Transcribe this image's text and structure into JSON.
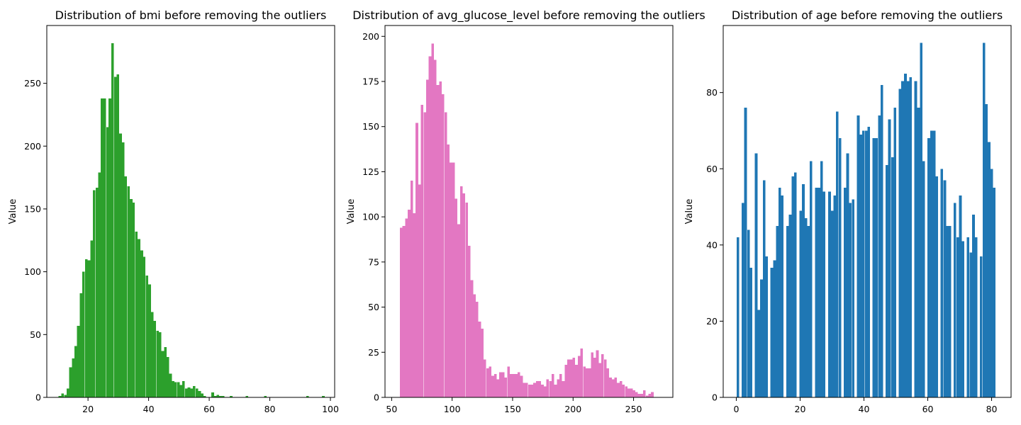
{
  "chart_data": [
    {
      "type": "bar",
      "title": "Distribution of bmi before removing the outliers",
      "xlabel": "",
      "ylabel": "Value",
      "color": "#2ca02c",
      "xlim": [
        6.4,
        101.4
      ],
      "ylim": [
        0,
        296
      ],
      "xticks": [
        20,
        40,
        60,
        80,
        100
      ],
      "yticks": [
        0,
        50,
        100,
        150,
        200,
        250
      ],
      "bin_width": 0.867,
      "x": [
        10.3,
        11.2,
        12.1,
        12.9,
        13.8,
        14.7,
        15.5,
        16.4,
        17.3,
        18.1,
        19.0,
        19.9,
        20.8,
        21.6,
        22.5,
        23.4,
        24.2,
        25.1,
        26.0,
        26.8,
        27.7,
        28.6,
        29.4,
        30.3,
        31.2,
        32.0,
        32.9,
        33.8,
        34.6,
        35.5,
        36.4,
        37.3,
        38.1,
        39.0,
        39.9,
        40.7,
        41.6,
        42.5,
        43.3,
        44.2,
        45.1,
        45.9,
        46.8,
        47.7,
        48.5,
        49.4,
        50.3,
        51.1,
        52.0,
        52.9,
        53.8,
        54.6,
        55.5,
        56.4,
        57.2,
        58.1,
        59.0,
        59.8,
        60.7,
        61.6,
        62.4,
        63.3,
        64.2,
        65.0,
        65.9,
        66.8,
        67.6,
        68.5,
        69.4,
        70.3,
        71.1,
        72.0,
        72.9,
        73.7,
        74.6,
        75.5,
        76.3,
        77.2,
        78.1,
        78.9,
        79.8,
        80.7,
        81.5,
        82.4,
        83.3,
        84.1,
        85.0,
        85.9,
        86.8,
        87.6,
        88.5,
        89.4,
        90.2,
        91.1,
        92.0,
        92.8,
        93.7,
        94.6,
        95.4,
        96.3,
        97.2
      ],
      "values": [
        1,
        3,
        2,
        7,
        24,
        31,
        41,
        57,
        83,
        100,
        110,
        109,
        125,
        165,
        167,
        179,
        238,
        238,
        215,
        238,
        282,
        255,
        257,
        210,
        203,
        176,
        168,
        158,
        155,
        132,
        126,
        117,
        112,
        97,
        90,
        68,
        61,
        53,
        52,
        37,
        40,
        32,
        19,
        13,
        12,
        12,
        10,
        13,
        7,
        8,
        7,
        9,
        7,
        5,
        3,
        1,
        0,
        0,
        4,
        1,
        2,
        1,
        1,
        0,
        0,
        1,
        0,
        0,
        0,
        0,
        0,
        1,
        0,
        0,
        0,
        0,
        0,
        0,
        1,
        0,
        0,
        0,
        0,
        0,
        0,
        0,
        0,
        0,
        0,
        0,
        0,
        0,
        0,
        0,
        1,
        0,
        0,
        0,
        0,
        0,
        1
      ]
    },
    {
      "type": "bar",
      "title": "Distribution of avg_glucose_level before removing the outliers",
      "xlabel": "",
      "ylabel": "Value",
      "color": "#e377c2",
      "xlim": [
        44.5,
        282.5
      ],
      "ylim": [
        0,
        206
      ],
      "xticks": [
        50,
        100,
        150,
        200,
        250
      ],
      "yticks": [
        0,
        25,
        50,
        75,
        100,
        125,
        150,
        175,
        200
      ],
      "bin_width": 2.16,
      "x": [
        56.8,
        59.0,
        61.1,
        63.3,
        65.5,
        67.6,
        69.8,
        72.0,
        74.1,
        76.3,
        78.4,
        80.6,
        82.8,
        84.9,
        87.1,
        89.3,
        91.4,
        93.6,
        95.7,
        97.9,
        100.1,
        102.2,
        104.4,
        106.6,
        108.7,
        110.9,
        113.0,
        115.2,
        117.4,
        119.5,
        121.7,
        123.9,
        126.0,
        128.2,
        130.3,
        132.5,
        134.7,
        136.8,
        139.0,
        141.2,
        143.3,
        145.5,
        147.6,
        149.8,
        152.0,
        154.1,
        156.3,
        158.5,
        160.6,
        162.8,
        164.9,
        167.1,
        169.3,
        171.4,
        173.6,
        175.8,
        177.9,
        180.1,
        182.2,
        184.4,
        186.6,
        188.7,
        190.9,
        193.1,
        195.2,
        197.4,
        199.5,
        201.7,
        203.9,
        206.0,
        208.2,
        210.4,
        212.5,
        214.7,
        216.8,
        219.0,
        221.2,
        223.3,
        225.5,
        227.7,
        229.8,
        232.0,
        234.1,
        236.3,
        238.5,
        240.6,
        242.8,
        245.0,
        247.1,
        249.3,
        251.4,
        253.6,
        255.8,
        257.9,
        260.1,
        262.3,
        264.4,
        266.6,
        268.7,
        270.9
      ],
      "values": [
        94,
        95,
        99,
        104,
        120,
        102,
        152,
        118,
        162,
        158,
        176,
        189,
        196,
        187,
        173,
        175,
        168,
        158,
        140,
        130,
        130,
        110,
        96,
        117,
        113,
        108,
        84,
        65,
        57,
        53,
        42,
        38,
        21,
        16,
        17,
        12,
        13,
        10,
        14,
        14,
        11,
        17,
        13,
        13,
        13,
        14,
        12,
        8,
        8,
        7,
        7,
        8,
        9,
        9,
        7,
        6,
        10,
        9,
        13,
        7,
        10,
        13,
        9,
        18,
        21,
        21,
        22,
        18,
        23,
        27,
        17,
        16,
        16,
        25,
        22,
        26,
        19,
        24,
        21,
        16,
        11,
        10,
        11,
        8,
        9,
        7,
        6,
        5,
        5,
        4,
        3,
        2,
        2,
        4,
        1,
        2,
        3,
        0,
        0,
        0
      ]
    },
    {
      "type": "bar",
      "title": "Distribution of age before removing the outliers",
      "xlabel": "",
      "ylabel": "Value",
      "color": "#1f77b4",
      "xlim": [
        -4.1,
        86.1
      ],
      "ylim": [
        0,
        97.6
      ],
      "xticks": [
        0,
        20,
        40,
        60,
        80
      ],
      "yticks": [
        0,
        20,
        40,
        60,
        80
      ],
      "bin_width": 0.82,
      "x": [
        0.1,
        0.9,
        1.7,
        2.5,
        3.4,
        4.2,
        5.0,
        5.8,
        6.6,
        7.5,
        8.3,
        9.1,
        9.9,
        10.7,
        11.6,
        12.4,
        13.2,
        14.0,
        14.8,
        15.7,
        16.5,
        17.3,
        18.1,
        18.9,
        19.8,
        20.6,
        21.4,
        22.2,
        23.0,
        23.9,
        24.7,
        25.5,
        26.3,
        27.1,
        28.0,
        28.8,
        29.6,
        30.4,
        31.2,
        32.1,
        32.9,
        33.7,
        34.5,
        35.3,
        36.2,
        37.0,
        37.8,
        38.6,
        39.4,
        40.3,
        41.1,
        41.9,
        42.7,
        43.5,
        44.4,
        45.2,
        46.0,
        46.8,
        47.6,
        48.5,
        49.3,
        50.1,
        50.9,
        51.7,
        52.6,
        53.4,
        54.2,
        55.0,
        55.8,
        56.7,
        57.5,
        58.3,
        59.1,
        59.9,
        60.8,
        61.6,
        62.4,
        63.2,
        64.0,
        64.9,
        65.7,
        66.5,
        67.3,
        68.1,
        69.0,
        69.8,
        70.6,
        71.4,
        72.2,
        73.1,
        73.9,
        74.7,
        75.5,
        76.3,
        77.2,
        78.0,
        78.8,
        79.6,
        80.4,
        81.3
      ],
      "values": [
        42,
        0,
        51,
        76,
        44,
        34,
        0,
        64,
        23,
        31,
        57,
        37,
        0,
        34,
        36,
        45,
        55,
        53,
        0,
        45,
        48,
        58,
        59,
        0,
        49,
        56,
        47,
        45,
        62,
        0,
        55,
        55,
        62,
        54,
        0,
        54,
        49,
        53,
        75,
        68,
        0,
        55,
        64,
        51,
        52,
        0,
        74,
        69,
        70,
        70,
        71,
        0,
        68,
        68,
        74,
        82,
        0,
        61,
        73,
        63,
        76,
        0,
        81,
        83,
        85,
        83,
        84,
        0,
        83,
        76,
        93,
        62,
        0,
        68,
        70,
        70,
        58,
        0,
        60,
        57,
        45,
        45,
        0,
        51,
        42,
        53,
        41,
        0,
        42,
        38,
        48,
        42,
        0,
        37,
        93,
        77,
        67,
        60,
        55,
        0
      ]
    }
  ]
}
